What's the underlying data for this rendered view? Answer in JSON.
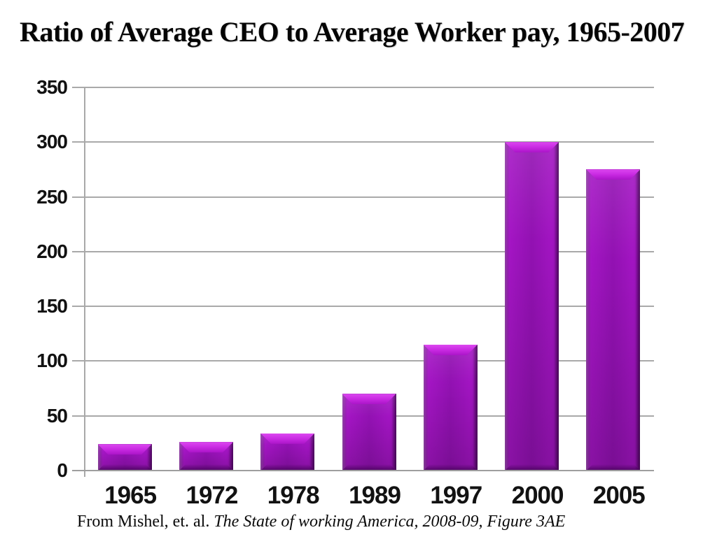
{
  "chart_data": {
    "type": "bar",
    "title": "Ratio of Average CEO to Average Worker pay, 1965-2007",
    "categories": [
      "1965",
      "1972",
      "1978",
      "1989",
      "1997",
      "2000",
      "2005"
    ],
    "values": [
      24,
      26,
      34,
      70,
      115,
      300,
      275
    ],
    "xlabel": "",
    "ylabel": "",
    "ylim": [
      0,
      350
    ],
    "ytick_interval": 50,
    "ytick_labels": [
      "0",
      "50",
      "100",
      "150",
      "200",
      "250",
      "300",
      "350"
    ],
    "grid": "horizontal-only",
    "legend_position": "none",
    "bar_color": "#9211b2",
    "bar_highlight_color": "#dc48f0",
    "bar_shadow_color": "#6e0a88",
    "gridline_color": "#a9a9a9"
  },
  "footer": {
    "prefix": "From Mishel, et. al. ",
    "italic": "The State of working America, 2008-09, Figure 3AE"
  }
}
